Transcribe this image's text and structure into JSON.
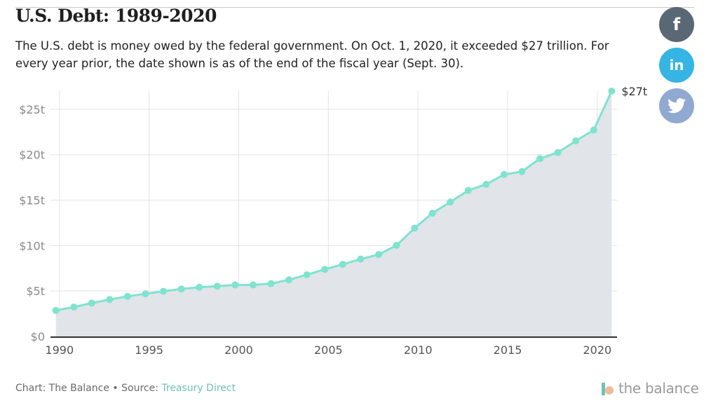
{
  "header": {
    "title": "U.S. Debt: 1989-2020",
    "subtitle": "The U.S. debt is money owed by the federal government. On Oct. 1, 2020, it exceeded $27 trillion. For every year prior, the date shown is as of the end of the fiscal year (Sept. 30)."
  },
  "social": {
    "facebook": {
      "icon": "facebook-icon",
      "label": "f",
      "color": "#5a6774"
    },
    "linkedin": {
      "icon": "linkedin-icon",
      "label": "in",
      "color": "#36b4e3"
    },
    "twitter": {
      "icon": "twitter-icon",
      "color": "#90a9d0"
    }
  },
  "footer": {
    "prefix": "Chart: The Balance • Source: ",
    "source_link": "Treasury Direct"
  },
  "brand": {
    "text": "the balance"
  },
  "colors": {
    "line": "#7ee3cf",
    "area": "#e1e4e9",
    "grid": "#e3e3e3",
    "axis": "#333333",
    "tick_text": "#8a8a8a"
  },
  "chart_data": {
    "type": "area",
    "x": [
      1989.8,
      1990.8,
      1991.8,
      1992.8,
      1993.8,
      1994.8,
      1995.8,
      1996.8,
      1997.8,
      1998.8,
      1999.8,
      2000.8,
      2001.8,
      2002.8,
      2003.8,
      2004.8,
      2005.8,
      2006.8,
      2007.8,
      2008.8,
      2009.8,
      2010.8,
      2011.8,
      2012.8,
      2013.8,
      2014.8,
      2015.8,
      2016.8,
      2017.8,
      2018.8,
      2019.8,
      2020.8
    ],
    "series": [
      {
        "values": [
          2.86,
          3.23,
          3.67,
          4.06,
          4.41,
          4.69,
          4.97,
          5.22,
          5.41,
          5.53,
          5.66,
          5.67,
          5.81,
          6.23,
          6.78,
          7.38,
          7.93,
          8.51,
          9.01,
          10.02,
          11.91,
          13.56,
          14.79,
          16.07,
          16.74,
          17.82,
          18.15,
          19.57,
          20.24,
          21.52,
          22.72,
          27.0
        ]
      }
    ],
    "last_label": "$27t",
    "xlim": [
      1989.5,
      2021.1
    ],
    "ylim": [
      0,
      27
    ],
    "xticks": [
      1990,
      1995,
      2000,
      2005,
      2010,
      2015,
      2020
    ],
    "xtick_labels": [
      "1990",
      "1995",
      "2000",
      "2005",
      "2010",
      "2015",
      "2020"
    ],
    "yticks": [
      0,
      5,
      10,
      15,
      20,
      25
    ],
    "ytick_labels": [
      "$0",
      "$5t",
      "$10t",
      "$15t",
      "$20t",
      "$25t"
    ],
    "grid": true,
    "legend": "none"
  }
}
